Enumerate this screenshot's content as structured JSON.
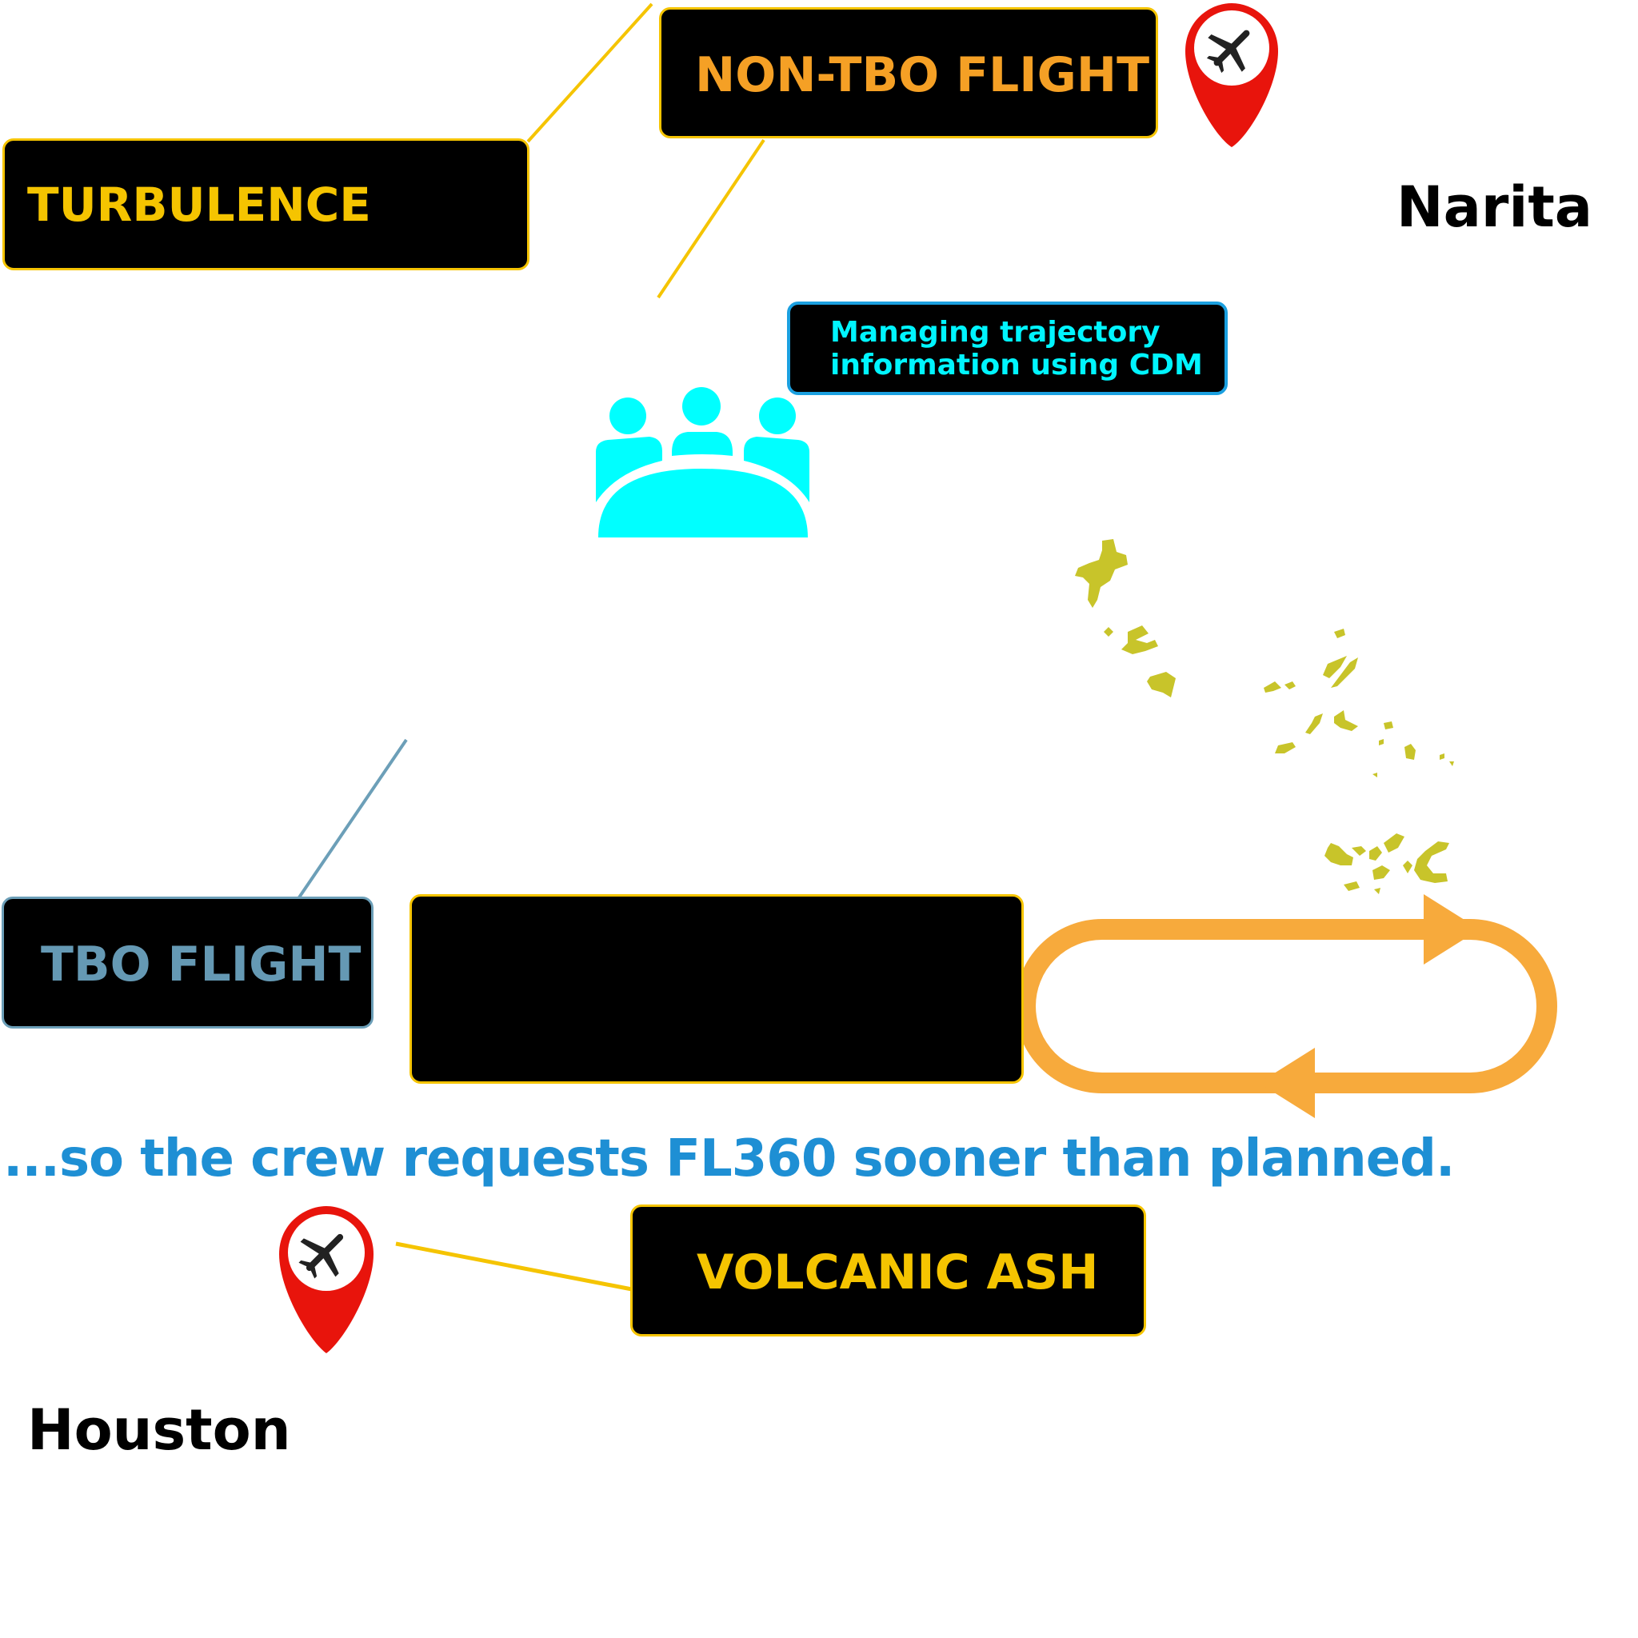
{
  "labels": {
    "turbulence": "TURBULENCE",
    "non_tbo_flight": "NON-TBO FLIGHT",
    "cdm": "Managing trajectory information using CDM",
    "tbo_flight": "TBO FLIGHT",
    "volcanic_ash": "VOLCANIC ASH"
  },
  "places": {
    "origin": "Narita",
    "destination": "Houston"
  },
  "caption": "...so the crew requests FL360 sooner than planned.",
  "icons": {
    "turbulence": "turbulence-wave-icon",
    "origin_pin": "airport-pin-icon",
    "destination_pin": "airport-pin-icon",
    "people": "meeting-people-icon",
    "holding": "holding-pattern-icon",
    "islands": "islands-icon"
  },
  "colors": {
    "hazard_yellow": "#F5C400",
    "non_tbo_orange": "#F5A025",
    "tbo_blue": "#6599B4",
    "cdm_cyan": "#00F5FF",
    "caption_blue": "#1E8FD4",
    "pin_red": "#E8140C",
    "islands": "#C8C42A"
  }
}
